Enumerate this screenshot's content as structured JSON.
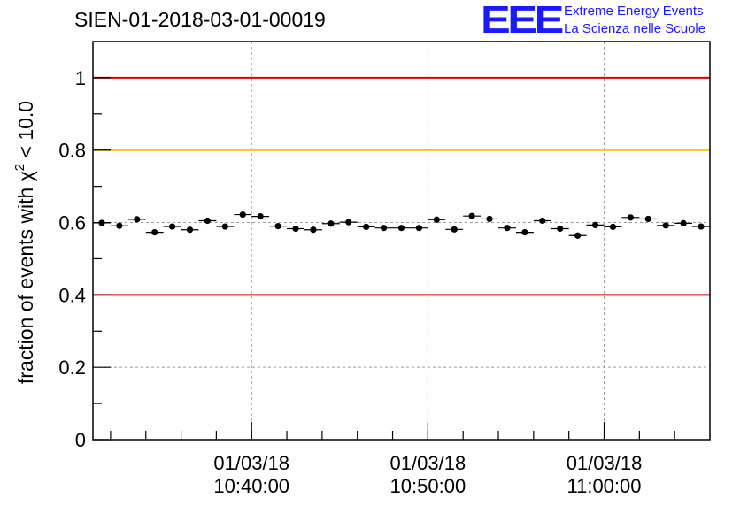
{
  "title": "SIEN-01-2018-03-01-00019",
  "logo": {
    "mark": "EEE",
    "line1": "Extreme Energy Events",
    "line2": "La Scienza nelle Scuole",
    "color": "#1a1aff"
  },
  "chart_data": {
    "type": "scatter",
    "ylabel_prefix": "fraction of events with χ",
    "ylabel_sup": "2",
    "ylabel_suffix": " < 10.0",
    "ylim": [
      0,
      1.1
    ],
    "yticks": [
      0,
      0.2,
      0.4,
      0.6,
      0.8,
      1
    ],
    "ytick_labels": [
      "0",
      "0.2",
      "0.4",
      "0.6",
      "0.8",
      "1"
    ],
    "grid": true,
    "xlim": [
      "10:31:00",
      "11:06:00"
    ],
    "xtick_labels": [
      {
        "x": "10:40:00",
        "date": "01/03/18",
        "time": "10:40:00"
      },
      {
        "x": "10:50:00",
        "date": "01/03/18",
        "time": "10:50:00"
      },
      {
        "x": "11:00:00",
        "date": "01/03/18",
        "time": "11:00:00"
      }
    ],
    "reference_lines": [
      {
        "y": 1.0,
        "color": "#dd0000"
      },
      {
        "y": 0.8,
        "color": "#ffc000"
      },
      {
        "y": 0.4,
        "color": "#dd0000"
      }
    ],
    "series": [
      {
        "marker_color": "#000000",
        "x": [
          "10:31:30",
          "10:32:30",
          "10:33:30",
          "10:34:30",
          "10:35:30",
          "10:36:30",
          "10:37:30",
          "10:38:30",
          "10:39:30",
          "10:40:30",
          "10:41:30",
          "10:42:30",
          "10:43:30",
          "10:44:30",
          "10:45:30",
          "10:46:30",
          "10:47:30",
          "10:48:30",
          "10:49:30",
          "10:50:30",
          "10:51:30",
          "10:52:30",
          "10:53:30",
          "10:54:30",
          "10:55:30",
          "10:56:30",
          "10:57:30",
          "10:58:30",
          "10:59:30",
          "11:00:30",
          "11:01:30",
          "11:02:30",
          "11:03:30",
          "11:04:30",
          "11:05:30"
        ],
        "y": [
          0.599,
          0.591,
          0.609,
          0.573,
          0.589,
          0.58,
          0.605,
          0.589,
          0.622,
          0.617,
          0.59,
          0.583,
          0.58,
          0.597,
          0.601,
          0.588,
          0.585,
          0.585,
          0.585,
          0.608,
          0.581,
          0.618,
          0.61,
          0.585,
          0.573,
          0.605,
          0.583,
          0.564,
          0.593,
          0.588,
          0.614,
          0.61,
          0.592,
          0.598,
          0.589
        ],
        "yerr": 0.007
      }
    ]
  }
}
